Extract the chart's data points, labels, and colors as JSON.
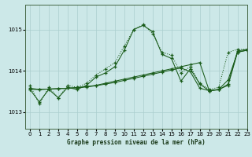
{
  "title": "Graphe pression niveau de la mer (hPa)",
  "background_color": "#cce8e8",
  "grid_color": "#aacece",
  "line_color": "#1a5c1a",
  "xlim": [
    -0.5,
    23
  ],
  "ylim": [
    1012.6,
    1015.6
  ],
  "yticks": [
    1013,
    1014,
    1015
  ],
  "xticks": [
    0,
    1,
    2,
    3,
    4,
    5,
    6,
    7,
    8,
    9,
    10,
    11,
    12,
    13,
    14,
    15,
    16,
    17,
    18,
    19,
    20,
    21,
    22,
    23
  ],
  "series": {
    "line1": [
      1013.65,
      1013.2,
      1013.6,
      1013.35,
      1013.65,
      1013.6,
      1013.7,
      1013.9,
      1014.05,
      1014.2,
      1014.6,
      1015.0,
      1015.12,
      1014.9,
      1014.45,
      1014.38,
      1013.95,
      1014.1,
      1013.7,
      1013.55,
      1013.6,
      1014.45,
      1014.52,
      1014.52
    ],
    "line2": [
      1013.55,
      1013.25,
      1013.55,
      1013.35,
      1013.6,
      1013.55,
      1013.65,
      1013.85,
      1013.95,
      1014.1,
      1014.5,
      1015.0,
      1015.1,
      1014.95,
      1014.4,
      1014.3,
      1013.75,
      1014.05,
      1013.68,
      1013.52,
      1013.55,
      1013.78,
      1014.45,
      1014.5
    ],
    "line3": [
      1013.55,
      1013.55,
      1013.56,
      1013.57,
      1013.58,
      1013.6,
      1013.62,
      1013.65,
      1013.7,
      1013.75,
      1013.8,
      1013.85,
      1013.9,
      1013.95,
      1014.0,
      1014.05,
      1014.1,
      1014.15,
      1014.2,
      1013.52,
      1013.54,
      1013.68,
      1014.48,
      1014.52
    ],
    "line4": [
      1013.58,
      1013.55,
      1013.56,
      1013.57,
      1013.58,
      1013.59,
      1013.61,
      1013.64,
      1013.68,
      1013.72,
      1013.77,
      1013.82,
      1013.87,
      1013.92,
      1013.97,
      1014.02,
      1014.07,
      1013.98,
      1013.58,
      1013.52,
      1013.55,
      1013.65,
      1014.45,
      1014.5
    ]
  }
}
